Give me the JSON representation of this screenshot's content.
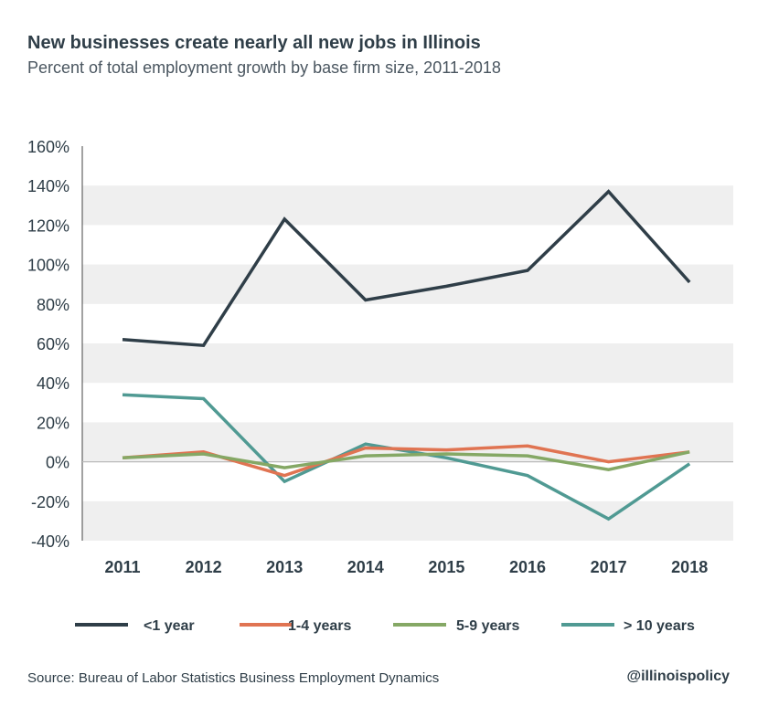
{
  "title": "New businesses create nearly all new jobs in Illinois",
  "subtitle": "Percent of total employment growth by base firm size, 2011-2018",
  "source": "Source: Bureau of Labor Statistics Business Employment Dynamics",
  "handle": "@illinoispolicy",
  "chart_data": {
    "type": "line",
    "title": "New businesses create nearly all new jobs in Illinois",
    "subtitle": "Percent of total employment growth by base firm size, 2011-2018",
    "xlabel": "",
    "ylabel": "",
    "x": [
      "2011",
      "2012",
      "2013",
      "2014",
      "2015",
      "2016",
      "2017",
      "2018"
    ],
    "ylim": [
      -40,
      160
    ],
    "yticks": [
      -40,
      -20,
      0,
      20,
      40,
      60,
      80,
      100,
      120,
      140,
      160
    ],
    "ytick_labels": [
      "-40%",
      "-20%",
      "0%",
      "20%",
      "40%",
      "60%",
      "80%",
      "100%",
      "120%",
      "140%",
      "160%"
    ],
    "grid": "alternating horizontal bands",
    "legend_position": "bottom",
    "series": [
      {
        "name": "<1 year",
        "color": "#2f3e48",
        "values": [
          62,
          59,
          123,
          82,
          89,
          97,
          137,
          91
        ]
      },
      {
        "name": "1-4 years",
        "color": "#e07452",
        "values": [
          2,
          5,
          -7,
          7,
          6,
          8,
          0,
          5
        ]
      },
      {
        "name": "5-9 years",
        "color": "#85a865",
        "values": [
          2,
          4,
          -3,
          3,
          4,
          3,
          -4,
          5
        ]
      },
      {
        "name": "> 10 years",
        "color": "#509a93",
        "values": [
          34,
          32,
          -10,
          9,
          2,
          -7,
          -29,
          -1
        ]
      }
    ]
  }
}
